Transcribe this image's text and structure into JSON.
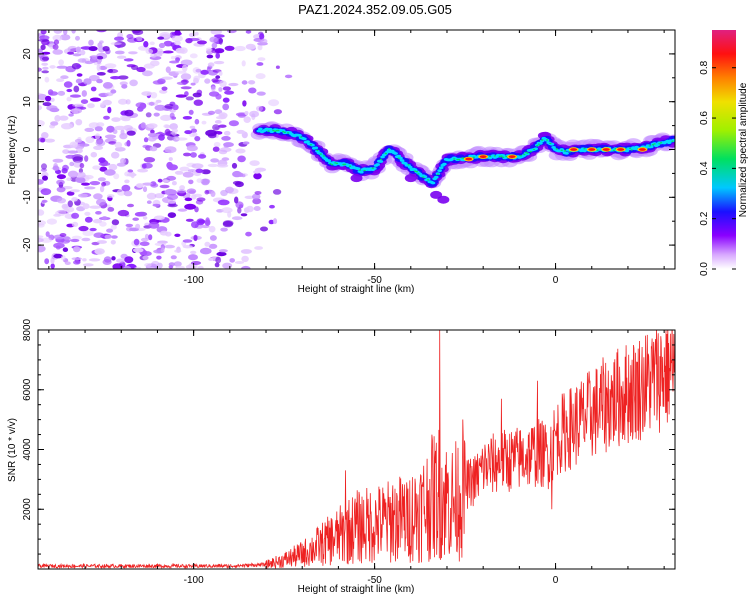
{
  "title": "PAZ1.2024.352.09.05.G05",
  "colors": {
    "snr_line": "#ee2222",
    "axis": "#000000"
  },
  "chart_data": [
    {
      "type": "heatmap",
      "xlabel": "Height of straight line (km)",
      "ylabel": "Frequency (Hz)",
      "xlim": [
        -143,
        33
      ],
      "ylim": [
        -25,
        25
      ],
      "x_ticks": [
        -100,
        -50,
        0
      ],
      "y_ticks": [
        -20,
        -10,
        0,
        10,
        20
      ],
      "colorbar": {
        "label": "Normalized spectral amplitude",
        "range": [
          0,
          0.95
        ],
        "ticks": [
          "0.0",
          "0.2",
          "0.4",
          "0.6",
          "0.8"
        ],
        "colormap": [
          "#ffffff",
          "#8a00ff",
          "#1a10ff",
          "#00d8ff",
          "#00e060",
          "#c8f000",
          "#ffb000",
          "#ff1010",
          "#e02080"
        ]
      },
      "ridge": {
        "x": [
          -82,
          -78,
          -74,
          -70,
          -66,
          -62,
          -58,
          -54,
          -50,
          -46,
          -42,
          -38,
          -34,
          -30,
          -26,
          -22,
          -18,
          -14,
          -10,
          -6,
          -3,
          0,
          3,
          6,
          10,
          15,
          20,
          25,
          30,
          33
        ],
        "freq": [
          4,
          4,
          3.5,
          2.5,
          0,
          -3,
          -3,
          -4.5,
          -4,
          0,
          -2.5,
          -5,
          -7,
          -2,
          -2,
          -1.5,
          -1.5,
          -1.5,
          -1.5,
          0,
          2.5,
          0,
          -0.5,
          0,
          0,
          0,
          0,
          0.5,
          1.5,
          2
        ]
      },
      "noise_x_range": [
        -143,
        -80
      ],
      "noise_freq_range": [
        -25,
        25
      ]
    },
    {
      "type": "line",
      "xlabel": "Height of straight line (km)",
      "ylabel": "SNR (10 * v/v)",
      "xlim": [
        -143,
        33
      ],
      "ylim": [
        0,
        8000
      ],
      "x_ticks": [
        -100,
        -50,
        0
      ],
      "y_ticks": [
        2000,
        4000,
        6000,
        8000
      ],
      "envelope": {
        "x": [
          -143,
          -90,
          -80,
          -75,
          -70,
          -65,
          -60,
          -55,
          -50,
          -45,
          -40,
          -37,
          -34,
          -32,
          -30,
          -28,
          -25,
          -22,
          -20,
          -15,
          -10,
          -5,
          -2,
          0,
          5,
          10,
          15,
          20,
          25,
          30,
          33
        ],
        "y": [
          100,
          100,
          150,
          300,
          500,
          800,
          1100,
          1400,
          1500,
          1600,
          1800,
          2000,
          2400,
          2600,
          2300,
          2200,
          2800,
          3000,
          3400,
          3600,
          3700,
          3900,
          3800,
          4400,
          4800,
          5200,
          5600,
          5900,
          6200,
          6600,
          6800
        ]
      },
      "spikes": [
        {
          "x": -58,
          "y": 3300
        },
        {
          "x": -45,
          "y": 2800
        },
        {
          "x": -41,
          "y": 2600
        },
        {
          "x": -34,
          "y": 4300
        },
        {
          "x": -32,
          "y": 8000
        },
        {
          "x": -30,
          "y": 3200
        },
        {
          "x": -25,
          "y": 4200
        },
        {
          "x": -15,
          "y": 5700
        },
        {
          "x": -5,
          "y": 6300
        },
        {
          "x": -1,
          "y": 2000
        }
      ]
    }
  ]
}
